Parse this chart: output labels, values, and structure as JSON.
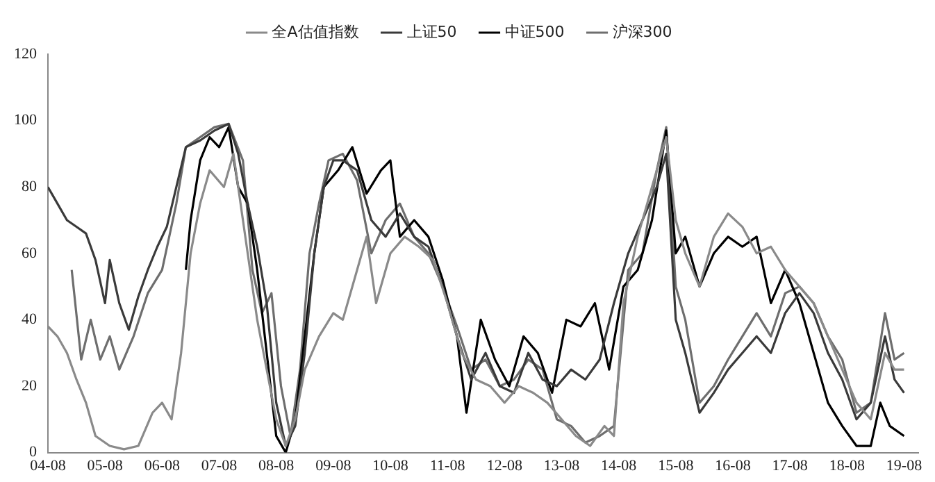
{
  "chart_data": {
    "type": "line",
    "xlim": [
      "2004-08",
      "2019-11"
    ],
    "xticks": [
      {
        "value": "2004-08",
        "label": "04-08"
      },
      {
        "value": "2005-08",
        "label": "05-08"
      },
      {
        "value": "2006-08",
        "label": "06-08"
      },
      {
        "value": "2007-08",
        "label": "07-08"
      },
      {
        "value": "2008-08",
        "label": "08-08"
      },
      {
        "value": "2009-08",
        "label": "09-08"
      },
      {
        "value": "2010-08",
        "label": "10-08"
      },
      {
        "value": "2011-08",
        "label": "11-08"
      },
      {
        "value": "2012-08",
        "label": "12-08"
      },
      {
        "value": "2013-08",
        "label": "13-08"
      },
      {
        "value": "2014-08",
        "label": "14-08"
      },
      {
        "value": "2015-08",
        "label": "15-08"
      },
      {
        "value": "2016-08",
        "label": "16-08"
      },
      {
        "value": "2017-08",
        "label": "17-08"
      },
      {
        "value": "2018-08",
        "label": "18-08"
      },
      {
        "value": "2019-08",
        "label": "19-08"
      }
    ],
    "ylim": [
      0,
      120
    ],
    "yticks": [
      0,
      20,
      40,
      60,
      80,
      100,
      120
    ],
    "grid": false,
    "legend": "top",
    "marker": "none",
    "line_style": "solid",
    "series": [
      {
        "name": "全A估值指数",
        "color": "#8a8a8a",
        "x": [
          "2004-08",
          "2004-10",
          "2004-12",
          "2005-02",
          "2005-04",
          "2005-06",
          "2005-09",
          "2005-12",
          "2006-03",
          "2006-06",
          "2006-08",
          "2006-10",
          "2006-12",
          "2007-02",
          "2007-04",
          "2007-06",
          "2007-09",
          "2007-11",
          "2008-02",
          "2008-04",
          "2008-06",
          "2008-08",
          "2008-10",
          "2008-12",
          "2009-02",
          "2009-05",
          "2009-08",
          "2009-10",
          "2010-01",
          "2010-03",
          "2010-05",
          "2010-08",
          "2010-11",
          "2011-02",
          "2011-05",
          "2011-08",
          "2011-11",
          "2012-02",
          "2012-05",
          "2012-08",
          "2012-11",
          "2013-02",
          "2013-05",
          "2013-08",
          "2013-11",
          "2014-02",
          "2014-05",
          "2014-07",
          "2014-09",
          "2014-12",
          "2015-03",
          "2015-06",
          "2015-08",
          "2015-10",
          "2016-01",
          "2016-04",
          "2016-07",
          "2016-10",
          "2017-01",
          "2017-04",
          "2017-07",
          "2017-10",
          "2018-01",
          "2018-04",
          "2018-07",
          "2018-10",
          "2019-01",
          "2019-04",
          "2019-06",
          "2019-08"
        ],
        "values": [
          38,
          35,
          30,
          22,
          15,
          5,
          2,
          1,
          2,
          12,
          15,
          10,
          30,
          60,
          75,
          85,
          80,
          90,
          60,
          40,
          25,
          10,
          2,
          10,
          25,
          35,
          42,
          40,
          55,
          65,
          45,
          60,
          65,
          62,
          58,
          45,
          30,
          22,
          20,
          15,
          20,
          18,
          15,
          10,
          5,
          2,
          8,
          5,
          45,
          65,
          80,
          95,
          70,
          60,
          50,
          65,
          72,
          68,
          60,
          62,
          55,
          50,
          45,
          35,
          25,
          15,
          10,
          30,
          25,
          25
        ]
      },
      {
        "name": "上证50",
        "color": "#3a3a3a",
        "x": [
          "2004-08",
          "2004-10",
          "2004-12",
          "2005-02",
          "2005-04",
          "2005-06",
          "2005-08",
          "2005-09",
          "2005-11",
          "2006-01",
          "2006-03",
          "2006-05",
          "2006-07",
          "2006-09",
          "2006-11",
          "2007-01",
          "2007-04",
          "2007-07",
          "2007-10",
          "2007-12",
          "2008-02",
          "2008-04",
          "2008-06",
          "2008-08",
          "2008-10",
          "2008-12",
          "2009-02",
          "2009-04",
          "2009-06",
          "2009-08",
          "2009-10",
          "2010-01",
          "2010-04",
          "2010-07",
          "2010-10",
          "2011-01",
          "2011-04",
          "2011-07",
          "2011-10",
          "2012-01",
          "2012-04",
          "2012-07",
          "2012-10",
          "2013-01",
          "2013-04",
          "2013-07",
          "2013-10",
          "2014-01",
          "2014-04",
          "2014-07",
          "2014-10",
          "2015-01",
          "2015-04",
          "2015-06",
          "2015-08",
          "2015-10",
          "2016-01",
          "2016-04",
          "2016-07",
          "2016-10",
          "2017-01",
          "2017-04",
          "2017-07",
          "2017-10",
          "2018-01",
          "2018-04",
          "2018-07",
          "2018-10",
          "2019-01",
          "2019-04",
          "2019-06",
          "2019-08"
        ],
        "values": [
          80,
          75,
          70,
          68,
          66,
          58,
          45,
          58,
          45,
          37,
          47,
          55,
          62,
          68,
          80,
          92,
          94,
          97,
          99,
          90,
          75,
          62,
          45,
          15,
          2,
          8,
          30,
          60,
          80,
          88,
          88,
          85,
          70,
          65,
          72,
          65,
          62,
          50,
          35,
          22,
          30,
          20,
          18,
          30,
          22,
          20,
          25,
          22,
          28,
          45,
          60,
          70,
          80,
          90,
          40,
          30,
          12,
          18,
          25,
          30,
          35,
          30,
          42,
          48,
          42,
          30,
          22,
          10,
          15,
          35,
          22,
          18
        ]
      },
      {
        "name": "中证500",
        "color": "#000000",
        "x": [
          "2007-01",
          "2007-02",
          "2007-04",
          "2007-06",
          "2007-08",
          "2007-10",
          "2007-12",
          "2008-02",
          "2008-04",
          "2008-06",
          "2008-08",
          "2008-10",
          "2008-12",
          "2009-02",
          "2009-04",
          "2009-06",
          "2009-09",
          "2009-12",
          "2010-03",
          "2010-06",
          "2010-08",
          "2010-10",
          "2011-01",
          "2011-04",
          "2011-07",
          "2011-10",
          "2011-12",
          "2012-03",
          "2012-06",
          "2012-09",
          "2012-12",
          "2013-03",
          "2013-06",
          "2013-09",
          "2013-12",
          "2014-03",
          "2014-06",
          "2014-09",
          "2014-12",
          "2015-03",
          "2015-06",
          "2015-08",
          "2015-10",
          "2016-01",
          "2016-04",
          "2016-07",
          "2016-10",
          "2017-01",
          "2017-04",
          "2017-07",
          "2017-10",
          "2018-01",
          "2018-04",
          "2018-07",
          "2018-10",
          "2019-01",
          "2019-03",
          "2019-05",
          "2019-08"
        ],
        "values": [
          55,
          70,
          88,
          95,
          92,
          98,
          80,
          75,
          55,
          30,
          5,
          0,
          10,
          35,
          60,
          80,
          85,
          92,
          78,
          85,
          88,
          65,
          70,
          65,
          52,
          35,
          12,
          40,
          28,
          20,
          35,
          30,
          18,
          40,
          38,
          45,
          25,
          50,
          55,
          70,
          97,
          60,
          65,
          50,
          60,
          65,
          62,
          65,
          45,
          55,
          45,
          30,
          15,
          8,
          2,
          2,
          15,
          8,
          5
        ]
      },
      {
        "name": "沪深300",
        "color": "#6e6e6e",
        "x": [
          "2005-01",
          "2005-03",
          "2005-05",
          "2005-07",
          "2005-09",
          "2005-11",
          "2006-02",
          "2006-05",
          "2006-08",
          "2006-11",
          "2007-01",
          "2007-04",
          "2007-07",
          "2007-10",
          "2008-01",
          "2008-03",
          "2008-05",
          "2008-07",
          "2008-09",
          "2008-11",
          "2009-01",
          "2009-03",
          "2009-05",
          "2009-07",
          "2009-10",
          "2010-01",
          "2010-04",
          "2010-07",
          "2010-10",
          "2011-01",
          "2011-04",
          "2011-07",
          "2011-10",
          "2012-01",
          "2012-04",
          "2012-07",
          "2012-10",
          "2013-01",
          "2013-04",
          "2013-07",
          "2013-10",
          "2014-01",
          "2014-04",
          "2014-07",
          "2014-10",
          "2015-01",
          "2015-04",
          "2015-06",
          "2015-08",
          "2015-10",
          "2016-01",
          "2016-04",
          "2016-07",
          "2016-10",
          "2017-01",
          "2017-04",
          "2017-07",
          "2017-10",
          "2018-01",
          "2018-04",
          "2018-07",
          "2018-10",
          "2019-01",
          "2019-04",
          "2019-06",
          "2019-08"
        ],
        "values": [
          55,
          28,
          40,
          28,
          35,
          25,
          35,
          48,
          55,
          75,
          92,
          95,
          98,
          99,
          88,
          55,
          42,
          48,
          20,
          5,
          25,
          60,
          75,
          88,
          90,
          82,
          60,
          70,
          75,
          65,
          60,
          50,
          38,
          25,
          28,
          20,
          22,
          28,
          25,
          10,
          8,
          3,
          5,
          8,
          55,
          60,
          85,
          98,
          50,
          40,
          15,
          20,
          28,
          35,
          42,
          35,
          48,
          50,
          45,
          35,
          28,
          12,
          15,
          42,
          28,
          30
        ]
      }
    ]
  }
}
